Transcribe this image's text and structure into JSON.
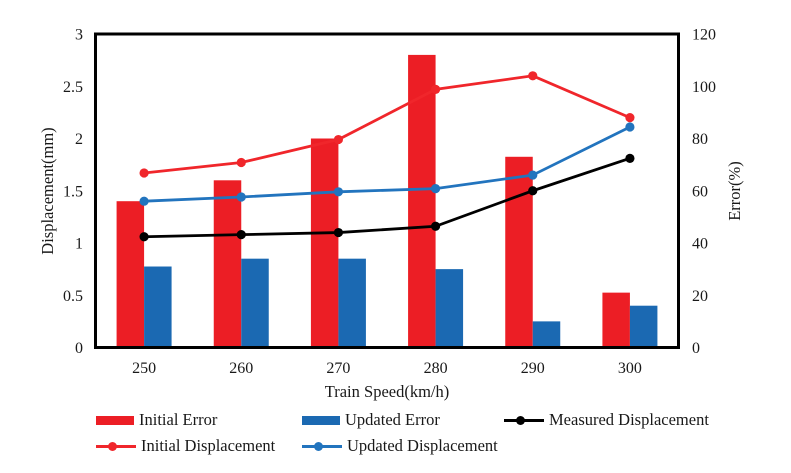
{
  "chart_data": {
    "type": "bar+line",
    "title": "",
    "categories": [
      "250",
      "260",
      "270",
      "280",
      "290",
      "300"
    ],
    "xlabel": "Train Speed(km/h)",
    "axis_left": {
      "label": "Displacement(mm)",
      "min": 0,
      "max": 3,
      "ticks": [
        "0",
        "0.5",
        "1",
        "1.5",
        "2",
        "2.5",
        "3"
      ]
    },
    "axis_right": {
      "label": "Error(%)",
      "min": 0,
      "max": 120,
      "ticks": [
        "0",
        "20",
        "40",
        "60",
        "80",
        "100",
        "120"
      ]
    },
    "grid": "off",
    "legend_position": "bottom",
    "bar_series": [
      {
        "name": "Initial Error",
        "axis": "right",
        "color": "#EC1E25",
        "values": [
          56,
          64,
          80,
          112,
          73,
          21
        ]
      },
      {
        "name": "Updated Error",
        "axis": "right",
        "color": "#1B69B2",
        "values": [
          31,
          34,
          34,
          30,
          10,
          16
        ]
      }
    ],
    "line_series": [
      {
        "name": "Measured Displacement",
        "axis": "left",
        "color": "#000000",
        "values": [
          1.06,
          1.08,
          1.1,
          1.16,
          1.5,
          1.81
        ]
      },
      {
        "name": "Initial Displacement",
        "axis": "left",
        "color": "#F0262B",
        "values": [
          1.67,
          1.77,
          1.99,
          2.47,
          2.6,
          2.2
        ]
      },
      {
        "name": "Updated Displacement",
        "axis": "left",
        "color": "#2274BE",
        "values": [
          1.4,
          1.44,
          1.49,
          1.52,
          1.65,
          2.11
        ]
      }
    ],
    "legend": [
      {
        "label": "Initial Error",
        "swatch": "bar",
        "color": "#EC1E25"
      },
      {
        "label": "Updated Error",
        "swatch": "bar",
        "color": "#1B69B2"
      },
      {
        "label": "Measured Displacement",
        "swatch": "line",
        "color": "#000000"
      },
      {
        "label": "Initial Displacement",
        "swatch": "line",
        "color": "#F0262B"
      },
      {
        "label": "Updated Displacement",
        "swatch": "line",
        "color": "#2274BE"
      }
    ]
  }
}
